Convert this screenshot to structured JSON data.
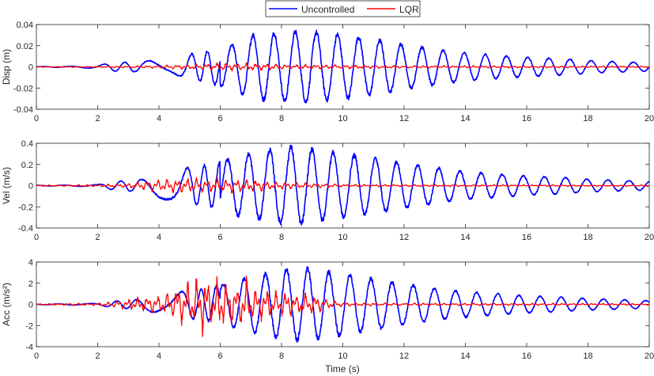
{
  "legend": {
    "entries": [
      {
        "label": "Uncontrolled",
        "color": "#0000ff"
      },
      {
        "label": "LQR",
        "color": "#ff0000"
      }
    ],
    "placement": "top-center"
  },
  "chart_data": [
    {
      "type": "line",
      "ylabel": "Disp (m)",
      "xlabel": "",
      "xlim": [
        0,
        20
      ],
      "ylim": [
        -0.04,
        0.04
      ],
      "xticks": [
        0,
        2,
        4,
        6,
        8,
        10,
        12,
        14,
        16,
        18,
        20
      ],
      "yticks": [
        "-0.04",
        "-0.02",
        "0",
        "0.02",
        "0.04"
      ],
      "grid": false,
      "series": [
        {
          "name": "Uncontrolled",
          "color": "#0000ff",
          "x": [
            0,
            1,
            2,
            2.5,
            3.5,
            4,
            4.5,
            5,
            5.5,
            6,
            6.5,
            7,
            7.5,
            8,
            8.5,
            9,
            9.5,
            10,
            10.5,
            11,
            12,
            13,
            14,
            15,
            16,
            17,
            18,
            19,
            20
          ],
          "peak": [
            0.0003,
            0.0005,
            0.0015,
            0.004,
            0.005,
            0.008,
            0.007,
            0.012,
            0.014,
            0.018,
            0.022,
            0.03,
            0.031,
            0.032,
            0.033,
            0.033,
            0.031,
            0.03,
            0.028,
            0.026,
            0.021,
            0.017,
            0.013,
            0.011,
            0.009,
            0.008,
            0.006,
            0.005,
            0.004
          ]
        },
        {
          "name": "LQR",
          "color": "#ff0000",
          "x": [
            0,
            2,
            4,
            5,
            6,
            7,
            8,
            10,
            12,
            16,
            20
          ],
          "peak": [
            0.0002,
            0.0005,
            0.001,
            0.002,
            0.003,
            0.003,
            0.002,
            0.0015,
            0.001,
            0.0008,
            0.0006
          ]
        }
      ]
    },
    {
      "type": "line",
      "ylabel": "Vel (m/s)",
      "xlabel": "",
      "xlim": [
        0,
        20
      ],
      "ylim": [
        -0.4,
        0.4
      ],
      "xticks": [
        0,
        2,
        4,
        6,
        8,
        10,
        12,
        14,
        16,
        18,
        20
      ],
      "yticks": [
        "-0.4",
        "-0.2",
        "0",
        "0.2",
        "0.4"
      ],
      "grid": false,
      "series": [
        {
          "name": "Uncontrolled",
          "color": "#0000ff",
          "x": [
            0,
            1,
            2,
            2.5,
            3.5,
            4,
            4.5,
            5,
            5.5,
            6,
            6.5,
            7,
            7.5,
            8,
            8.5,
            9,
            9.5,
            10,
            10.5,
            11,
            12,
            13,
            14,
            15,
            16,
            17,
            18,
            19,
            20
          ],
          "peak": [
            0.003,
            0.005,
            0.01,
            0.04,
            0.06,
            0.12,
            0.14,
            0.17,
            0.19,
            0.22,
            0.28,
            0.3,
            0.33,
            0.35,
            0.37,
            0.34,
            0.32,
            0.3,
            0.28,
            0.26,
            0.21,
            0.17,
            0.13,
            0.11,
            0.09,
            0.08,
            0.06,
            0.05,
            0.04
          ]
        },
        {
          "name": "LQR",
          "color": "#ff0000",
          "x": [
            0,
            2,
            3,
            4,
            5,
            6,
            7,
            8,
            9,
            10,
            12,
            16,
            20
          ],
          "peak": [
            0.004,
            0.008,
            0.02,
            0.05,
            0.06,
            0.06,
            0.05,
            0.03,
            0.02,
            0.01,
            0.008,
            0.006,
            0.005
          ]
        }
      ]
    },
    {
      "type": "line",
      "ylabel": "Acc (m/s²)",
      "xlabel": "Time (s)",
      "xlim": [
        0,
        20
      ],
      "ylim": [
        -4,
        4
      ],
      "xticks": [
        0,
        2,
        4,
        6,
        8,
        10,
        12,
        14,
        16,
        18,
        20
      ],
      "yticks": [
        "-4",
        "-2",
        "0",
        "2",
        "4"
      ],
      "grid": false,
      "series": [
        {
          "name": "Uncontrolled",
          "color": "#0000ff",
          "x": [
            0,
            1,
            2,
            2.5,
            3.5,
            4,
            4.5,
            5,
            5.5,
            6,
            6.5,
            7,
            7.5,
            8,
            8.5,
            9,
            9.5,
            10,
            10.5,
            11,
            12,
            13,
            14,
            15,
            16,
            17,
            18,
            19,
            20
          ],
          "peak": [
            0.03,
            0.05,
            0.1,
            0.3,
            0.5,
            0.9,
            1.1,
            1.3,
            1.5,
            1.8,
            2.2,
            2.6,
            2.9,
            3.2,
            3.4,
            3.3,
            3.1,
            2.9,
            2.6,
            2.4,
            1.9,
            1.5,
            1.2,
            1.0,
            0.8,
            0.7,
            0.55,
            0.45,
            0.35
          ]
        },
        {
          "name": "LQR",
          "color": "#ff0000",
          "x": [
            0,
            2,
            3,
            4,
            4.5,
            5,
            5.5,
            6,
            6.5,
            6.8,
            7,
            8,
            9,
            9.5,
            10,
            12,
            16,
            20
          ],
          "peak": [
            0.05,
            0.1,
            0.4,
            0.8,
            1.2,
            1.8,
            2.4,
            2.0,
            1.6,
            2.5,
            1.3,
            1.0,
            0.8,
            0.4,
            0.15,
            0.1,
            0.08,
            0.06
          ]
        }
      ]
    }
  ]
}
